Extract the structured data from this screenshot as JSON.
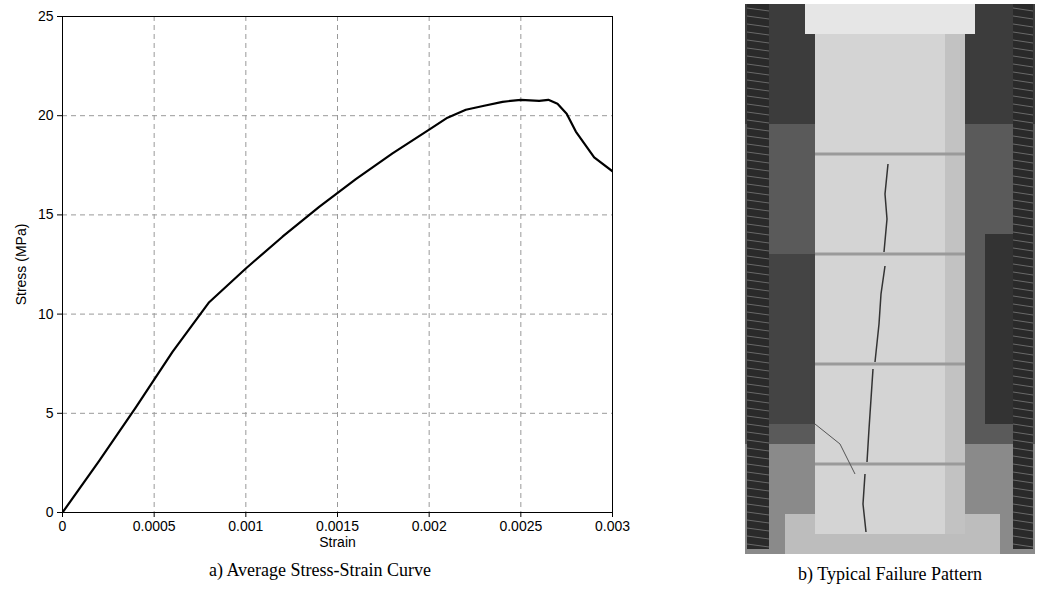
{
  "chart_data": {
    "type": "line",
    "caption": "a) Average Stress-Strain Curve",
    "xlabel": "Strain",
    "ylabel": "Stress (MPa)",
    "x": [
      0,
      0.0002,
      0.0004,
      0.0005,
      0.0006,
      0.0008,
      0.001,
      0.0012,
      0.0014,
      0.0016,
      0.0018,
      0.002,
      0.0021,
      0.0022,
      0.0023,
      0.0024,
      0.0025,
      0.0026,
      0.00265,
      0.0027,
      0.00275,
      0.0028,
      0.0029,
      0.003
    ],
    "values": [
      0,
      2.6,
      5.3,
      6.7,
      8.1,
      10.6,
      12.3,
      13.9,
      15.4,
      16.8,
      18.1,
      19.3,
      19.9,
      20.3,
      20.5,
      20.7,
      20.8,
      20.75,
      20.8,
      20.6,
      20.1,
      19.2,
      17.9,
      17.2
    ],
    "color": "#000000",
    "xlim": [
      0,
      0.003
    ],
    "ylim": [
      0,
      25
    ],
    "xticks": [
      0,
      0.0005,
      0.001,
      0.0015,
      0.002,
      0.0025,
      0.003
    ],
    "yticks": [
      0,
      5,
      10,
      15,
      20,
      25
    ],
    "grid": true
  },
  "panel_b": {
    "caption": "b) Typical Failure Pattern"
  }
}
